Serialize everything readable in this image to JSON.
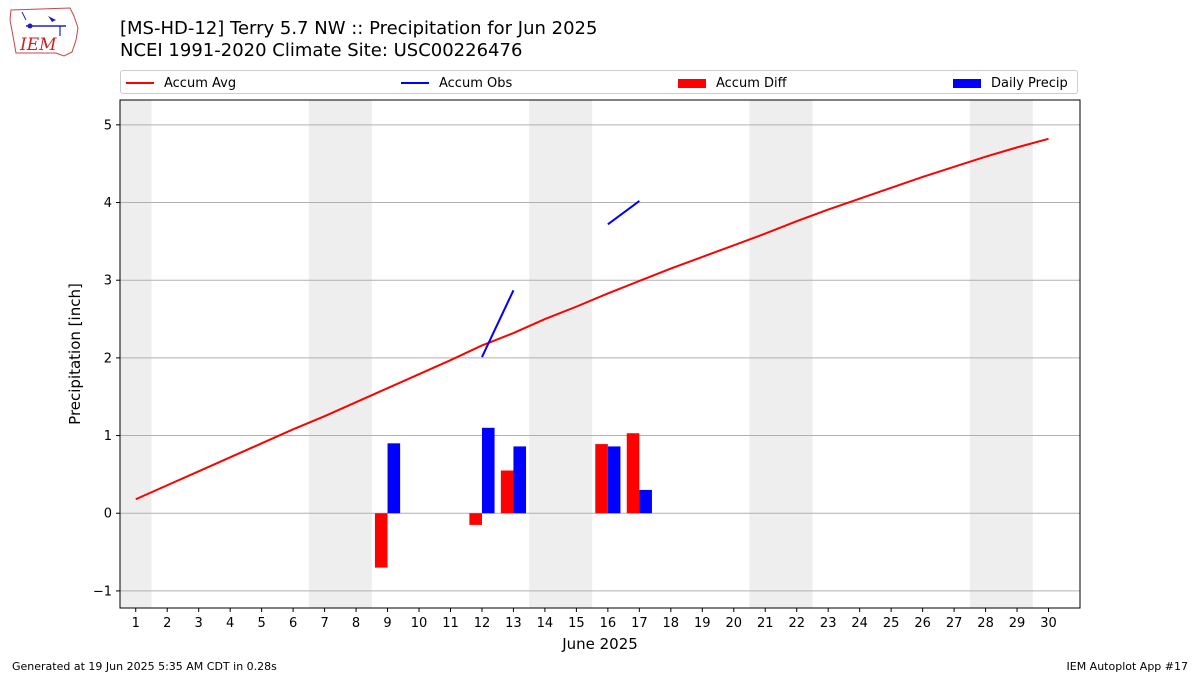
{
  "header": {
    "title_line1": "[MS-HD-12] Terry 5.7 NW :: Precipitation for Jun 2025",
    "title_line2": "NCEI 1991-2020 Climate Site: USC00226476",
    "logo_text": "IEM"
  },
  "footer": {
    "left": "Generated at 19 Jun 2025 5:35 AM CDT in 0.28s",
    "right": "IEM Autoplot App #17"
  },
  "chart_data": {
    "type": "bar",
    "xlabel": "June 2025",
    "ylabel": "Precipitation [inch]",
    "xlim": [
      0.5,
      31.0
    ],
    "ylim": [
      -1.22,
      5.32
    ],
    "x_ticks": [
      1,
      2,
      3,
      4,
      5,
      6,
      7,
      8,
      9,
      10,
      11,
      12,
      13,
      14,
      15,
      16,
      17,
      18,
      19,
      20,
      21,
      22,
      23,
      24,
      25,
      26,
      27,
      28,
      29,
      30
    ],
    "y_ticks": [
      -1,
      0,
      1,
      2,
      3,
      4,
      5
    ],
    "grid": "y",
    "legend_position": "top",
    "weekend_bands": [
      [
        0.5,
        1.5
      ],
      [
        6.5,
        8.5
      ],
      [
        13.5,
        15.5
      ],
      [
        20.5,
        22.5
      ],
      [
        27.5,
        29.5
      ]
    ],
    "series": [
      {
        "name": "Accum Avg",
        "kind": "line",
        "color": "#ff0000",
        "x": [
          1,
          2,
          3,
          4,
          5,
          6,
          7,
          8,
          9,
          10,
          11,
          12,
          13,
          14,
          15,
          16,
          17,
          18,
          19,
          20,
          21,
          22,
          23,
          24,
          25,
          26,
          27,
          28,
          29,
          30
        ],
        "values": [
          0.18,
          0.36,
          0.54,
          0.72,
          0.9,
          1.08,
          1.25,
          1.43,
          1.61,
          1.79,
          1.97,
          2.16,
          2.32,
          2.5,
          2.66,
          2.83,
          2.99,
          3.15,
          3.3,
          3.45,
          3.6,
          3.76,
          3.91,
          4.05,
          4.19,
          4.33,
          4.46,
          4.59,
          4.71,
          4.82
        ]
      },
      {
        "name": "Accum Obs",
        "kind": "line",
        "color": "#0000ff",
        "x": [
          12,
          13,
          16,
          17
        ],
        "values": [
          2.01,
          2.87,
          3.72,
          4.02
        ],
        "segments": [
          [
            12,
            13
          ],
          [
            16,
            17
          ]
        ]
      },
      {
        "name": "Accum Diff",
        "kind": "bar",
        "color": "#ff0000",
        "x": [
          9,
          12,
          13,
          16,
          17
        ],
        "values": [
          -0.7,
          -0.15,
          0.55,
          0.89,
          1.03
        ]
      },
      {
        "name": "Daily Precip",
        "kind": "bar",
        "color": "#0000ff",
        "x": [
          9,
          12,
          13,
          16,
          17
        ],
        "values": [
          0.9,
          1.1,
          0.86,
          0.86,
          0.3
        ]
      }
    ]
  }
}
